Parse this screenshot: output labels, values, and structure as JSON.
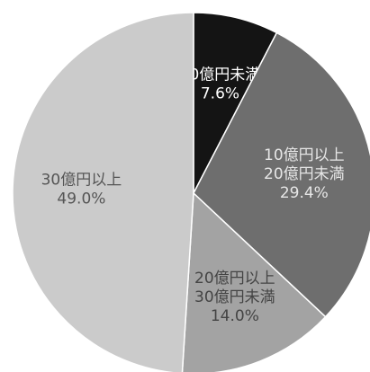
{
  "chart_data": {
    "type": "pie",
    "categories": [
      "10億円未満",
      "10億円以上\n20億円未満",
      "20億円以上\n30億円未満",
      "30億円以上"
    ],
    "values": [
      7.6,
      29.4,
      14.0,
      49.0
    ],
    "value_labels": [
      "7.6%",
      "29.4%",
      "14.0%",
      "49.0%"
    ],
    "colors": [
      "#141414",
      "#6e6e6e",
      "#a3a3a3",
      "#cbcbcb"
    ]
  }
}
